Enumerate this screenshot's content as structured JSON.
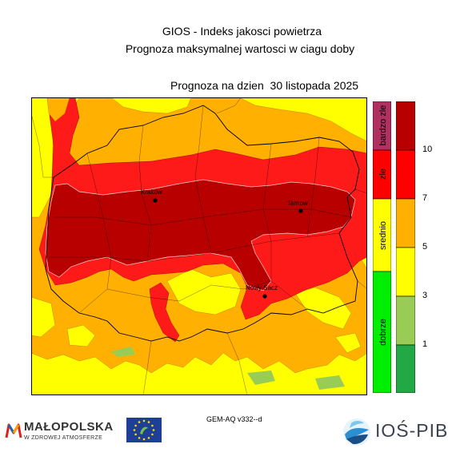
{
  "title": {
    "line1": "GIOS - Indeks jakosci powietrza",
    "line2": "Prognoza maksymalnej wartosci w ciagu doby"
  },
  "forecast_date": "Prognoza na dzien  30 listopada 2025",
  "map": {
    "colors": {
      "bardzo_zle": "#b01c1c",
      "zle": "#ff1a1a",
      "dostateczny": "#ffb000",
      "umiarkowany": "#ffff00",
      "dobry": "#99cc55",
      "bardzo_dobry": "#22a844"
    },
    "cities": [
      {
        "name": "Krakow"
      },
      {
        "name": "Tarnow"
      },
      {
        "name": "Nowy Sacz"
      }
    ]
  },
  "legend": {
    "classes": [
      {
        "label": "bardzo zle",
        "color": "#b03060"
      },
      {
        "label": "zle",
        "color": "#ff0000"
      },
      {
        "label": "srednio",
        "color": "#ffff00"
      },
      {
        "label": "dobrze",
        "color": "#00ee00"
      }
    ],
    "scale_colors": [
      "#b80000",
      "#ff0000",
      "#ffb000",
      "#ffff00",
      "#99cc55",
      "#22a844"
    ],
    "ticks": [
      "10",
      "7",
      "5",
      "3",
      "1"
    ]
  },
  "footer": {
    "model_version": "GEM-AQ v332--d",
    "malopolska": {
      "name": "MAŁOPOLSKA",
      "tagline": "W ZDROWEJ ATMOSFERZE"
    },
    "eu_flag_icon": "eu-life-flag-icon",
    "ios_pib": "IOŚ-PIB"
  }
}
